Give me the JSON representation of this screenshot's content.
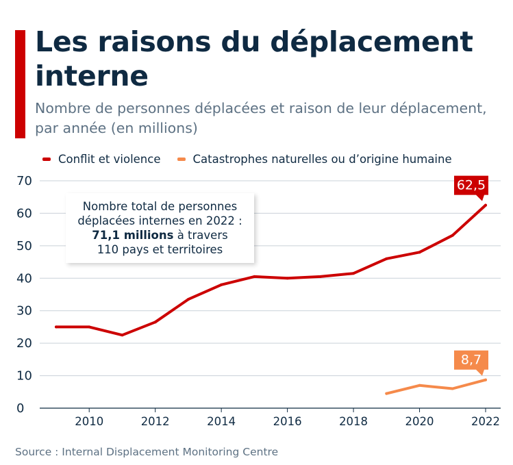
{
  "header": {
    "title": "Les raisons du déplacement interne",
    "subtitle": "Nombre de personnes déplacées et raison de leur déplacement, par année (en millions)"
  },
  "callout": {
    "line1": "Nombre total de personnes",
    "line2": "déplacées internes en 2022 :",
    "line3_bold": "71,1 millions",
    "line3_rest": " à travers",
    "line4": "110 pays et territoires"
  },
  "source": "Source : Internal Displacement Monitoring Centre",
  "colors": {
    "conflict": "#cc0000",
    "disaster": "#f58a4b",
    "grid": "#c9d0d8",
    "text": "#0f2a42"
  },
  "chart_data": {
    "type": "line",
    "title": "Les raisons du déplacement interne",
    "subtitle": "Nombre de personnes déplacées et raison de leur déplacement, par année (en millions)",
    "legend_position": "top-left",
    "grid": true,
    "xlim": [
      2009,
      2022
    ],
    "ylim": [
      0,
      70
    ],
    "x_ticks": [
      "2010",
      "2012",
      "2014",
      "2016",
      "2018",
      "2020",
      "2022"
    ],
    "y_ticks": [
      "0",
      "10",
      "20",
      "30",
      "40",
      "50",
      "60",
      "70"
    ],
    "series": [
      {
        "name": "Conflit et violence",
        "color": "#cc0000",
        "x": [
          2009,
          2010,
          2011,
          2012,
          2013,
          2014,
          2015,
          2016,
          2017,
          2018,
          2019,
          2020,
          2021,
          2022
        ],
        "values": [
          25,
          25,
          22.5,
          26.5,
          33.5,
          38,
          40.5,
          40,
          40.5,
          41.5,
          46,
          48,
          53.2,
          62.5
        ],
        "end_label": "62,5"
      },
      {
        "name": "Catastrophes naturelles ou d’origine humaine",
        "color": "#f58a4b",
        "x": [
          2019,
          2020,
          2021,
          2022
        ],
        "values": [
          4.5,
          7,
          6,
          8.7
        ],
        "end_label": "8,7"
      }
    ]
  }
}
